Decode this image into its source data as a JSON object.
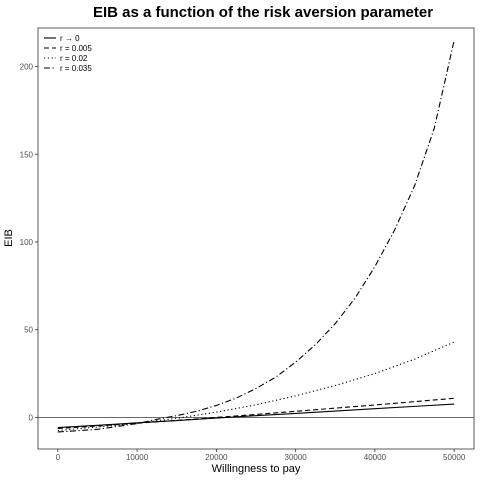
{
  "chart_data": {
    "type": "line",
    "title": "EIB as a function of the risk aversion parameter",
    "xlabel": "Willingness to pay",
    "ylabel": "EIB",
    "xlim": [
      -2500,
      52500
    ],
    "ylim": [
      -18,
      222
    ],
    "x_ticks": [
      0,
      10000,
      20000,
      30000,
      40000,
      50000
    ],
    "x_tick_labels": [
      "0",
      "10000",
      "20000",
      "30000",
      "40000",
      "50000"
    ],
    "y_ticks": [
      0,
      50,
      100,
      150,
      200
    ],
    "y_tick_labels": [
      "0",
      "50",
      "100",
      "150",
      "200"
    ],
    "grid": false,
    "reference_line_y": 0,
    "legend_position": "top-left",
    "series": [
      {
        "name": "r → 0",
        "linestyle": "solid",
        "x": [
          0,
          5000,
          10000,
          15000,
          20000,
          25000,
          30000,
          35000,
          40000,
          45000,
          50000
        ],
        "y": [
          -5.8,
          -4.5,
          -3.1,
          -1.8,
          -0.4,
          1.0,
          2.3,
          3.6,
          5.0,
          6.3,
          7.6
        ]
      },
      {
        "name": "r = 0.005",
        "linestyle": "dashed",
        "x": [
          0,
          5000,
          10000,
          15000,
          20000,
          25000,
          30000,
          35000,
          40000,
          45000,
          50000
        ],
        "y": [
          -6.3,
          -4.9,
          -3.3,
          -1.7,
          0.0,
          1.7,
          3.5,
          5.3,
          7.1,
          9.0,
          10.9
        ]
      },
      {
        "name": "r = 0.02",
        "linestyle": "dotted",
        "x": [
          0,
          5000,
          10000,
          15000,
          20000,
          25000,
          30000,
          35000,
          40000,
          45000,
          50000
        ],
        "y": [
          -7.4,
          -5.5,
          -3.3,
          -0.5,
          3.0,
          7.2,
          12.3,
          18.2,
          25.0,
          33.2,
          43.0
        ]
      },
      {
        "name": "r = 0.035",
        "linestyle": "dashdot",
        "x": [
          0,
          5000,
          10000,
          12500,
          15000,
          17500,
          20000,
          22500,
          25000,
          27500,
          30000,
          32500,
          35000,
          37500,
          40000,
          42500,
          45000,
          47500,
          50000
        ],
        "y": [
          -8.3,
          -6.8,
          -3.5,
          -1.1,
          1.0,
          3.5,
          6.8,
          11.0,
          16.5,
          23.0,
          31.5,
          41.5,
          53.5,
          68.0,
          86.0,
          107.0,
          132.0,
          165.0,
          215.0
        ]
      }
    ]
  }
}
